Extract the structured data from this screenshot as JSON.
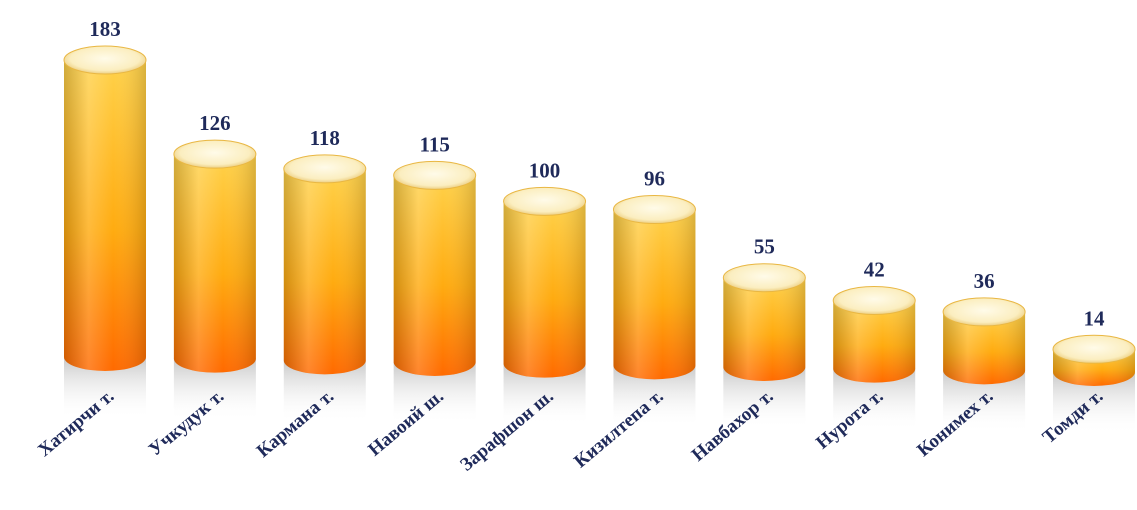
{
  "chart_data": {
    "type": "bar",
    "title": "",
    "xlabel": "",
    "ylabel": "",
    "categories": [
      "Хатирчи т.",
      "Учкудук т.",
      "Кармана т.",
      "Навоий ш.",
      "Зарафшон ш.",
      "Кизилтепа т.",
      "Навбахор т.",
      "Нурота т.",
      "Конимех т.",
      "Томди т."
    ],
    "values": [
      183,
      126,
      118,
      115,
      100,
      96,
      55,
      42,
      36,
      14
    ],
    "value_labels": [
      "183",
      "126",
      "118",
      "115",
      "100",
      "96",
      "55",
      "42",
      "36",
      "14"
    ],
    "ylim": [
      0,
      183
    ],
    "grid": false,
    "legend": "none",
    "colors": {
      "bar_top": "#ffd24a",
      "bar_bottom": "#ff6a00",
      "cap": "#fdf2c8",
      "label": "#1f2a5a"
    }
  }
}
